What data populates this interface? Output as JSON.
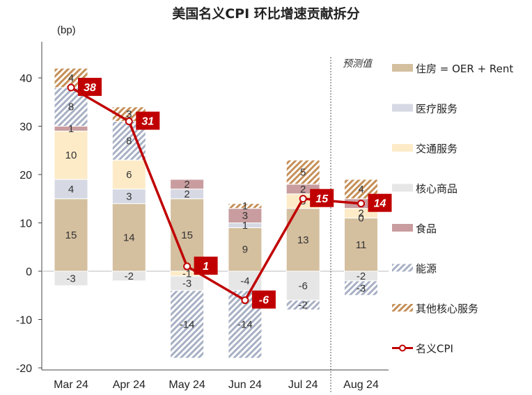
{
  "chart_data": {
    "type": "bar",
    "stacked": true,
    "title": "美国名义CPI 环比增速贡献拆分",
    "unit": "(bp)",
    "forecast_label": "预测值",
    "categories": [
      "Mar 24",
      "Apr 24",
      "May 24",
      "Jun 24",
      "Jul 24",
      "Aug 24"
    ],
    "ylim": [
      -20,
      42
    ],
    "yticks": [
      -20,
      -10,
      0,
      10,
      20,
      30,
      40
    ],
    "series": [
      {
        "name": "住房 = OER + Rent",
        "color": "#d4bf9f",
        "pattern": "solid",
        "values": [
          15,
          14,
          15,
          9,
          13,
          11
        ]
      },
      {
        "name": "医疗服务",
        "color": "#d6d9e3",
        "pattern": "solid",
        "values": [
          4,
          3,
          2,
          1,
          0,
          0
        ]
      },
      {
        "name": "交通服务",
        "color": "#fdebc8",
        "pattern": "solid",
        "values": [
          10,
          6,
          -1,
          0,
          3,
          2
        ]
      },
      {
        "name": "核心商品",
        "color": "#e6e6e6",
        "pattern": "solid",
        "values": [
          -3,
          -2,
          -3,
          -4,
          -6,
          -2
        ]
      },
      {
        "name": "食品",
        "color": "#c99d9f",
        "pattern": "solid",
        "values": [
          1,
          0,
          2,
          3,
          2,
          2
        ]
      },
      {
        "name": "能源",
        "color": "#a7b0c4",
        "pattern": "diag",
        "values": [
          8,
          8,
          -14,
          -14,
          -2,
          -3
        ]
      },
      {
        "name": "其他核心服务",
        "color": "#c58f57",
        "pattern": "diag",
        "values": [
          4,
          3,
          0,
          1,
          5,
          4
        ]
      }
    ],
    "labels": [
      [
        "15",
        "4",
        "10",
        "-3",
        "1",
        "8",
        "4"
      ],
      [
        "14",
        "3",
        "6",
        "-2",
        "",
        "8",
        "3"
      ],
      [
        "15",
        "2",
        "-1",
        "-3",
        "2",
        "-14",
        ""
      ],
      [
        "9",
        "1",
        "",
        "-4",
        "3",
        "-14",
        "1"
      ],
      [
        "13",
        "",
        "3",
        "-6",
        "2",
        "-2",
        "5"
      ],
      [
        "11",
        "0",
        "2",
        "-2",
        "2",
        "-3",
        "4"
      ]
    ],
    "line": {
      "name": "名义CPI",
      "color": "#c00000",
      "values": [
        38,
        31,
        1,
        -6,
        15,
        14
      ],
      "labels": [
        "38",
        "31",
        "1",
        "-6",
        "15",
        "14"
      ]
    },
    "grid": false,
    "legend": "right"
  }
}
